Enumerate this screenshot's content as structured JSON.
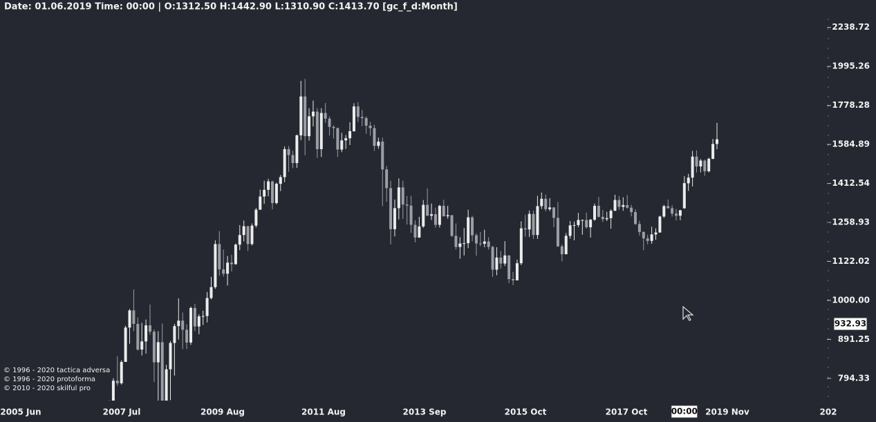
{
  "chart_data": {
    "type": "candlestick",
    "header": "Date: 01.06.2019 Time: 00:00 | O:1312.50 H:1442.90 L:1310.90 C:1413.70  [gc_f_d:Month]",
    "copyright": [
      "© 1996 - 2020 tactica adversa",
      "© 1996 - 2020 protoforma",
      "© 2010 - 2020 skilful pro"
    ],
    "x_axis_labels": [
      "2005 Jun",
      "2007 Jul",
      "2009 Aug",
      "2011 Aug",
      "2013 Sep",
      "2015 Oct",
      "2017 Oct",
      "2019 Nov",
      "202"
    ],
    "log_scale": true,
    "ylim": [
      744,
      2321
    ],
    "yticks": [
      794.33,
      891.25,
      {
        "value": 1000,
        "label": "1000.00"
      },
      1122.02,
      1258.93,
      1412.54,
      1584.89,
      1778.28,
      1995.26,
      2238.72
    ],
    "crosshair_price": 932.93,
    "crosshair_time": "00:00",
    "up_color": "#ececec",
    "down_color": "#9c9ea6",
    "x": [
      "2007 Sep",
      "2007 Oct",
      "2007 Nov",
      "2007 Dec",
      "2008 Jan",
      "2008 Feb",
      "2008 Mar",
      "2008 Apr",
      "2008 May",
      "2008 Jun",
      "2008 Jul",
      "2008 Aug",
      "2008 Sep",
      "2008 Oct",
      "2008 Nov",
      "2008 Dec",
      "2009 Jan",
      "2009 Feb",
      "2009 Mar",
      "2009 Apr",
      "2009 May",
      "2009 Jun",
      "2009 Jul",
      "2009 Aug",
      "2009 Sep",
      "2009 Oct",
      "2009 Nov",
      "2009 Dec",
      "2010 Jan",
      "2010 Feb",
      "2010 Mar",
      "2010 Apr",
      "2010 May",
      "2010 Jun",
      "2010 Jul",
      "2010 Aug",
      "2010 Sep",
      "2010 Oct",
      "2010 Nov",
      "2010 Dec",
      "2011 Jan",
      "2011 Feb",
      "2011 Mar",
      "2011 Apr",
      "2011 May",
      "2011 Jun",
      "2011 Jul",
      "2011 Aug",
      "2011 Sep",
      "2011 Oct",
      "2011 Nov",
      "2011 Dec",
      "2012 Jan",
      "2012 Feb",
      "2012 Mar",
      "2012 Apr",
      "2012 May",
      "2012 Jun",
      "2012 Jul",
      "2012 Aug",
      "2012 Sep",
      "2012 Oct",
      "2012 Nov",
      "2012 Dec",
      "2013 Jan",
      "2013 Feb",
      "2013 Mar",
      "2013 Apr",
      "2013 May",
      "2013 Jun",
      "2013 Jul",
      "2013 Aug",
      "2013 Sep",
      "2013 Oct",
      "2013 Nov",
      "2013 Dec",
      "2014 Jan",
      "2014 Feb",
      "2014 Mar",
      "2014 Apr",
      "2014 May",
      "2014 Jun",
      "2014 Jul",
      "2014 Aug",
      "2014 Sep",
      "2014 Oct",
      "2014 Nov",
      "2014 Dec",
      "2015 Jan",
      "2015 Feb",
      "2015 Mar",
      "2015 Apr",
      "2015 May",
      "2015 Jun",
      "2015 Jul",
      "2015 Aug",
      "2015 Sep",
      "2015 Oct",
      "2015 Nov",
      "2015 Dec",
      "2016 Jan",
      "2016 Feb",
      "2016 Mar",
      "2016 Apr",
      "2016 May",
      "2016 Jun",
      "2016 Jul",
      "2016 Aug",
      "2016 Sep",
      "2016 Oct",
      "2016 Nov",
      "2016 Dec",
      "2017 Jan",
      "2017 Feb",
      "2017 Mar",
      "2017 Apr",
      "2017 May",
      "2017 Jun",
      "2017 Jul",
      "2017 Aug",
      "2017 Sep",
      "2017 Oct",
      "2017 Nov",
      "2017 Dec",
      "2018 Jan",
      "2018 Feb",
      "2018 Mar",
      "2018 Apr",
      "2018 May",
      "2018 Jun",
      "2018 Jul",
      "2018 Aug",
      "2018 Sep",
      "2018 Oct",
      "2018 Nov",
      "2018 Dec",
      "2019 Jan",
      "2019 Feb",
      "2019 Mar",
      "2019 Apr",
      "2019 May",
      "2019 Jun",
      "2019 Jul",
      "2019 Aug",
      "2019 Sep",
      "2019 Oct",
      "2019 Nov",
      "2019 Dec",
      "2020 Jan",
      "2020 Feb"
    ],
    "open": [
      672,
      743,
      789,
      783,
      834,
      923,
      971,
      933,
      865,
      886,
      929,
      912,
      833,
      884,
      719,
      816,
      882,
      927,
      942,
      917,
      883,
      978,
      926,
      954,
      955,
      1007,
      1040,
      1181,
      1096,
      1082,
      1118,
      1113,
      1179,
      1213,
      1245,
      1181,
      1247,
      1307,
      1359,
      1386,
      1421,
      1333,
      1411,
      1439,
      1563,
      1536,
      1500,
      1628,
      1826,
      1624,
      1722,
      1746,
      1563,
      1739,
      1710,
      1669,
      1663,
      1561,
      1604,
      1614,
      1648,
      1773,
      1719,
      1713,
      1675,
      1663,
      1578,
      1598,
      1472,
      1393,
      1234,
      1313,
      1396,
      1327,
      1323,
      1250,
      1204,
      1244,
      1326,
      1284,
      1290,
      1250,
      1322,
      1282,
      1286,
      1210,
      1171,
      1183,
      1184,
      1278,
      1212,
      1183,
      1182,
      1190,
      1171,
      1095,
      1135,
      1115,
      1142,
      1065,
      1061,
      1116,
      1237,
      1233,
      1291,
      1213,
      1321,
      1350,
      1309,
      1316,
      1276,
      1173,
      1146,
      1210,
      1248,
      1249,
      1268,
      1268,
      1241,
      1269,
      1322,
      1280,
      1271,
      1275,
      1303,
      1345,
      1318,
      1325,
      1315,
      1298,
      1253,
      1224,
      1201,
      1192,
      1215,
      1222,
      1281,
      1321,
      1313,
      1292,
      1284,
      1312.5,
      1413,
      1437,
      1529,
      1485,
      1511,
      1464,
      1519,
      1587
    ],
    "high": [
      745,
      795,
      848,
      838,
      928,
      975,
      1033,
      951,
      936,
      945,
      988,
      918,
      913,
      934,
      827,
      887,
      933,
      1006,
      965,
      932,
      982,
      990,
      960,
      970,
      1025,
      1072,
      1194,
      1227,
      1162,
      1140,
      1144,
      1183,
      1249,
      1266,
      1246,
      1255,
      1314,
      1387,
      1424,
      1432,
      1424,
      1416,
      1448,
      1576,
      1577,
      1556,
      1632,
      1912,
      1923,
      1764,
      1804,
      1764,
      1764,
      1791,
      1722,
      1677,
      1666,
      1640,
      1630,
      1692,
      1790,
      1796,
      1755,
      1722,
      1694,
      1679,
      1617,
      1617,
      1487,
      1424,
      1347,
      1434,
      1424,
      1361,
      1362,
      1267,
      1280,
      1345,
      1392,
      1331,
      1315,
      1326,
      1346,
      1322,
      1287,
      1255,
      1205,
      1238,
      1307,
      1284,
      1219,
      1224,
      1232,
      1205,
      1175,
      1170,
      1157,
      1191,
      1143,
      1088,
      1128,
      1263,
      1287,
      1304,
      1303,
      1362,
      1375,
      1367,
      1352,
      1316,
      1337,
      1180,
      1220,
      1264,
      1262,
      1295,
      1270,
      1296,
      1272,
      1331,
      1357,
      1306,
      1299,
      1309,
      1366,
      1361,
      1356,
      1365,
      1326,
      1309,
      1265,
      1226,
      1214,
      1243,
      1237,
      1284,
      1326,
      1347,
      1324,
      1310,
      1306,
      1442.9,
      1453,
      1555,
      1557,
      1518,
      1516,
      1524,
      1611,
      1689
    ],
    "low": [
      667,
      725,
      777,
      780,
      834,
      880,
      913,
      862,
      850,
      855,
      904,
      786,
      740,
      681,
      705,
      745,
      801,
      891,
      866,
      866,
      877,
      913,
      905,
      930,
      937,
      1003,
      1035,
      1075,
      1073,
      1045,
      1089,
      1111,
      1160,
      1190,
      1157,
      1176,
      1240,
      1314,
      1330,
      1360,
      1309,
      1328,
      1381,
      1418,
      1462,
      1478,
      1479,
      1605,
      1535,
      1603,
      1671,
      1523,
      1527,
      1689,
      1627,
      1613,
      1527,
      1549,
      1564,
      1582,
      1645,
      1693,
      1672,
      1636,
      1626,
      1555,
      1565,
      1321,
      1338,
      1180,
      1208,
      1270,
      1272,
      1251,
      1221,
      1187,
      1203,
      1239,
      1284,
      1268,
      1240,
      1240,
      1281,
      1273,
      1206,
      1162,
      1131,
      1142,
      1167,
      1190,
      1141,
      1173,
      1170,
      1162,
      1072,
      1077,
      1098,
      1107,
      1052,
      1046,
      1062,
      1110,
      1207,
      1206,
      1199,
      1199,
      1310,
      1301,
      1302,
      1241,
      1171,
      1122,
      1146,
      1200,
      1194,
      1241,
      1214,
      1236,
      1204,
      1265,
      1277,
      1260,
      1264,
      1236,
      1302,
      1307,
      1303,
      1311,
      1282,
      1250,
      1211,
      1160,
      1180,
      1182,
      1196,
      1221,
      1276,
      1311,
      1281,
      1266,
      1267,
      1310.9,
      1382,
      1400,
      1459,
      1459,
      1445,
      1459,
      1517,
      1562
    ],
    "close": [
      743,
      789,
      783,
      834,
      923,
      971,
      933,
      865,
      886,
      929,
      912,
      833,
      884,
      719,
      816,
      882,
      927,
      942,
      917,
      883,
      978,
      926,
      954,
      955,
      1007,
      1040,
      1181,
      1096,
      1082,
      1118,
      1113,
      1179,
      1213,
      1245,
      1181,
      1247,
      1307,
      1359,
      1386,
      1421,
      1333,
      1411,
      1439,
      1563,
      1536,
      1500,
      1628,
      1826,
      1624,
      1722,
      1746,
      1563,
      1739,
      1710,
      1669,
      1663,
      1561,
      1604,
      1614,
      1648,
      1773,
      1719,
      1713,
      1675,
      1663,
      1578,
      1598,
      1472,
      1393,
      1234,
      1313,
      1396,
      1327,
      1323,
      1250,
      1204,
      1244,
      1326,
      1284,
      1290,
      1250,
      1322,
      1282,
      1286,
      1210,
      1171,
      1183,
      1184,
      1278,
      1212,
      1183,
      1182,
      1190,
      1171,
      1095,
      1135,
      1115,
      1142,
      1065,
      1061,
      1116,
      1237,
      1233,
      1291,
      1213,
      1321,
      1350,
      1309,
      1316,
      1276,
      1173,
      1146,
      1210,
      1248,
      1249,
      1268,
      1268,
      1241,
      1269,
      1322,
      1280,
      1271,
      1275,
      1303,
      1345,
      1318,
      1325,
      1315,
      1298,
      1253,
      1224,
      1201,
      1192,
      1215,
      1222,
      1281,
      1321,
      1313,
      1292,
      1284,
      1305,
      1413.7,
      1437,
      1529,
      1485,
      1511,
      1464,
      1519,
      1587,
      1609
    ]
  }
}
